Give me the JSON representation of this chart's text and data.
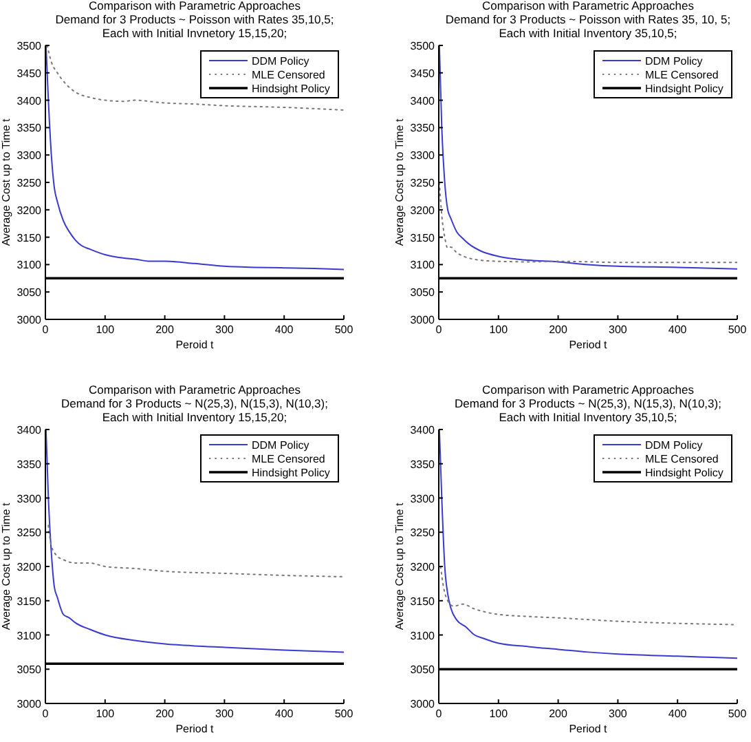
{
  "chart_data": [
    {
      "type": "line",
      "title": "Comparison with Parametric Approaches",
      "subtitle": "Demand for 3 Products ~ Poisson with Rates 35,10,5;\nEach with Initial Invnetory 15,15,20;",
      "xlabel": "Peroid t",
      "ylabel": "Average Cost up to Time t",
      "xlim": [
        0,
        500
      ],
      "xticks": [
        0,
        100,
        200,
        300,
        400,
        500
      ],
      "ylim": [
        3000,
        3500
      ],
      "yticks": [
        3000,
        3050,
        3100,
        3150,
        3200,
        3250,
        3300,
        3350,
        3400,
        3450,
        3500
      ],
      "legend": "top right",
      "grid": false,
      "series": [
        {
          "name": "DDM Policy",
          "color": "#3a3ad0",
          "line_style": "solid",
          "x": [
            1,
            5,
            10,
            15,
            20,
            30,
            40,
            50,
            60,
            75,
            100,
            130,
            150,
            175,
            200,
            250,
            300,
            350,
            400,
            450,
            500
          ],
          "values": [
            3500,
            3400,
            3300,
            3240,
            3215,
            3180,
            3160,
            3145,
            3135,
            3128,
            3118,
            3112,
            3110,
            3106,
            3106,
            3102,
            3097,
            3095,
            3094,
            3093,
            3091
          ]
        },
        {
          "name": "MLE Censored",
          "color": "#777777",
          "line_style": "dotted",
          "x": [
            3,
            10,
            20,
            30,
            50,
            75,
            100,
            130,
            150,
            200,
            250,
            300,
            400,
            500
          ],
          "values": [
            3500,
            3470,
            3450,
            3435,
            3415,
            3405,
            3400,
            3398,
            3400,
            3395,
            3393,
            3390,
            3387,
            3382
          ]
        },
        {
          "name": "Hindsight Policy",
          "color": "#000000",
          "line_style": "solid",
          "x": [
            0,
            500
          ],
          "values": [
            3075,
            3075
          ]
        }
      ]
    },
    {
      "type": "line",
      "title": "Comparison with Parametric Approaches",
      "subtitle": "Demand for 3 Products ~ Poisson with Rates 35, 10, 5;\nEach with Initial Inventory 35,10,5;",
      "xlabel": "Period t",
      "ylabel": "Average Cost up to Time t",
      "xlim": [
        0,
        500
      ],
      "xticks": [
        0,
        100,
        200,
        300,
        400,
        500
      ],
      "ylim": [
        3000,
        3500
      ],
      "yticks": [
        3000,
        3050,
        3100,
        3150,
        3200,
        3250,
        3300,
        3350,
        3400,
        3450,
        3500
      ],
      "legend": "top right",
      "grid": false,
      "series": [
        {
          "name": "DDM Policy",
          "color": "#3a3ad0",
          "line_style": "solid",
          "x": [
            1,
            5,
            10,
            15,
            20,
            30,
            40,
            50,
            70,
            100,
            130,
            150,
            200,
            250,
            300,
            400,
            500
          ],
          "values": [
            3500,
            3350,
            3250,
            3200,
            3185,
            3160,
            3148,
            3138,
            3125,
            3115,
            3110,
            3108,
            3105,
            3100,
            3097,
            3095,
            3092
          ]
        },
        {
          "name": "MLE Censored",
          "color": "#777777",
          "line_style": "dotted",
          "x": [
            1,
            5,
            10,
            15,
            20,
            30,
            50,
            70,
            100,
            150,
            200,
            300,
            400,
            500
          ],
          "values": [
            3250,
            3190,
            3150,
            3130,
            3132,
            3122,
            3112,
            3108,
            3106,
            3105,
            3106,
            3104,
            3104,
            3104
          ]
        },
        {
          "name": "Hindsight Policy",
          "color": "#000000",
          "line_style": "solid",
          "x": [
            0,
            500
          ],
          "values": [
            3075,
            3075
          ]
        }
      ]
    },
    {
      "type": "line",
      "title": "Comparison with Parametric Approaches",
      "subtitle": "Demand for 3 Products ~ N(25,3), N(15,3), N(10,3);\nEach with Initial Inventory 15,15,20;",
      "xlabel": "Period t",
      "ylabel": "Average Cost up to Time t",
      "xlim": [
        0,
        500
      ],
      "xticks": [
        0,
        100,
        200,
        300,
        400,
        500
      ],
      "ylim": [
        3000,
        3400
      ],
      "yticks": [
        3000,
        3050,
        3100,
        3150,
        3200,
        3250,
        3300,
        3350,
        3400
      ],
      "legend": "top right",
      "grid": false,
      "series": [
        {
          "name": "DDM Policy",
          "color": "#3a3ad0",
          "line_style": "solid",
          "x": [
            1,
            5,
            10,
            15,
            20,
            30,
            40,
            50,
            75,
            100,
            150,
            200,
            250,
            300,
            400,
            500
          ],
          "values": [
            3400,
            3300,
            3220,
            3170,
            3155,
            3130,
            3125,
            3118,
            3108,
            3100,
            3092,
            3087,
            3084,
            3082,
            3078,
            3075
          ]
        },
        {
          "name": "MLE Censored",
          "color": "#777777",
          "line_style": "dotted",
          "x": [
            5,
            10,
            20,
            30,
            50,
            75,
            100,
            150,
            200,
            300,
            400,
            500
          ],
          "values": [
            3260,
            3230,
            3215,
            3210,
            3205,
            3205,
            3200,
            3197,
            3193,
            3190,
            3187,
            3185
          ]
        },
        {
          "name": "Hindsight Policy",
          "color": "#000000",
          "line_style": "solid",
          "x": [
            0,
            500
          ],
          "values": [
            3058,
            3058
          ]
        }
      ]
    },
    {
      "type": "line",
      "title": "Comparison with Parametric Approaches",
      "subtitle": "Demand for 3 Products ~ N(25,3), N(15,3), N(10,3);\nEach with Initial Inventory 35,10,5;",
      "xlabel": "Period t",
      "ylabel": "Average Cost up to Time t",
      "xlim": [
        0,
        500
      ],
      "xticks": [
        0,
        100,
        200,
        300,
        400,
        500
      ],
      "ylim": [
        3000,
        3400
      ],
      "yticks": [
        3000,
        3050,
        3100,
        3150,
        3200,
        3250,
        3300,
        3350,
        3400
      ],
      "legend": "top right",
      "grid": false,
      "series": [
        {
          "name": "DDM Policy",
          "color": "#3a3ad0",
          "line_style": "solid",
          "x": [
            1,
            5,
            10,
            15,
            20,
            30,
            45,
            60,
            75,
            100,
            150,
            200,
            250,
            300,
            400,
            500
          ],
          "values": [
            3400,
            3300,
            3200,
            3160,
            3140,
            3122,
            3112,
            3100,
            3095,
            3088,
            3083,
            3079,
            3075,
            3072,
            3069,
            3066
          ]
        },
        {
          "name": "MLE Censored",
          "color": "#777777",
          "line_style": "dotted",
          "x": [
            3,
            8,
            15,
            25,
            40,
            60,
            100,
            150,
            200,
            300,
            400,
            500
          ],
          "values": [
            3200,
            3170,
            3150,
            3142,
            3145,
            3138,
            3130,
            3127,
            3125,
            3120,
            3117,
            3115
          ]
        },
        {
          "name": "Hindsight Policy",
          "color": "#000000",
          "line_style": "solid",
          "x": [
            0,
            500
          ],
          "values": [
            3050,
            3050
          ]
        }
      ]
    }
  ]
}
